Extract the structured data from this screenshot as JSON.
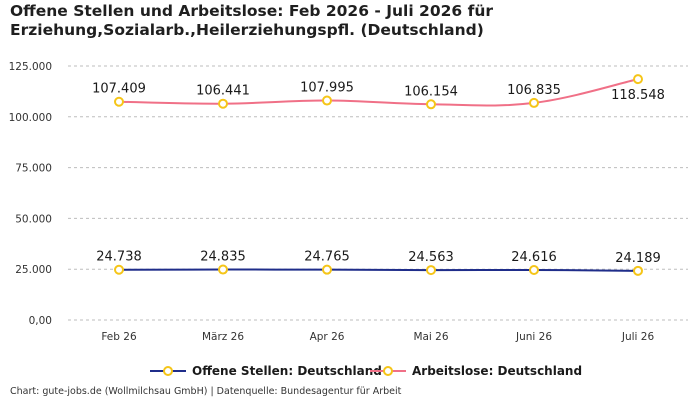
{
  "chart_data": {
    "type": "line",
    "title": "Offene Stellen und Arbeitslose: Feb 2026 - Juli 2026 für Erziehung,Sozialarb.,Heilerziehungspfl. (Deutschland)",
    "categories": [
      "Feb 26",
      "März 26",
      "Apr 26",
      "Mai 26",
      "Juni 26",
      "Juli 26"
    ],
    "ylim": [
      0,
      125000
    ],
    "yticks": [
      {
        "value": 0,
        "label": "0,00"
      },
      {
        "value": 25000,
        "label": "25.000"
      },
      {
        "value": 50000,
        "label": "50.000"
      },
      {
        "value": 75000,
        "label": "75.000"
      },
      {
        "value": 100000,
        "label": "100.000"
      },
      {
        "value": 125000,
        "label": "125.000"
      }
    ],
    "grid": true,
    "legend_position": "bottom",
    "series": [
      {
        "name": "Offene Stellen: Deutschland",
        "color": "#1f2d8a",
        "values": [
          24738,
          24835,
          24765,
          24563,
          24616,
          24189
        ],
        "labels": [
          "24.738",
          "24.835",
          "24.765",
          "24.563",
          "24.616",
          "24.189"
        ]
      },
      {
        "name": "Arbeitslose: Deutschland",
        "color": "#f07087",
        "values": [
          107409,
          106441,
          107995,
          106154,
          106835,
          118548
        ],
        "labels": [
          "107.409",
          "106.441",
          "107.995",
          "106.154",
          "106.835",
          "118.548"
        ]
      }
    ],
    "marker_color": "#f5c518"
  },
  "footer": "Chart: gute-jobs.de (Wollmilchsau GmbH) | Datenquelle: Bundesagentur für Arbeit"
}
